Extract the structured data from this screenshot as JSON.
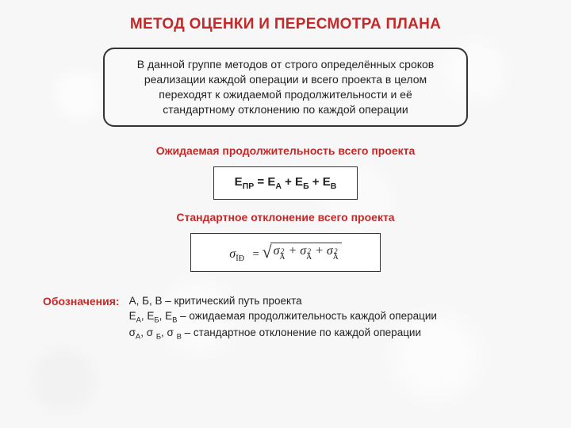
{
  "title": "МЕТОД ОЦЕНКИ И ПЕРЕСМОТРА ПЛАНА",
  "callout": "В данной группе методов от строго определённых сроков реализации каждой операции и всего проекта в целом переходят к ожидаемой продолжительности и её стандартному отклонению по каждой операции",
  "section1_heading": "Ожидаемая продолжительность всего проекта",
  "section2_heading": "Стандартное отклонение всего проекта",
  "legend_label": "Обозначения:",
  "legend_line1": "А, Б, В – критический путь проекта",
  "legend_line2_pre": "E",
  "legend_line2_text": " – ожидаемая продолжительность каждой операции",
  "legend_line3_text": " – стандартное отклонение по каждой операции",
  "colors": {
    "accent": "#c62828",
    "text": "#222222",
    "border": "#333333",
    "background": "#f7f7f7"
  },
  "formula_E": {
    "lhs": "E",
    "lhs_sub": "ПР",
    "terms": [
      {
        "base": "E",
        "sub": "А"
      },
      {
        "base": "E",
        "sub": "Б"
      },
      {
        "base": "E",
        "sub": "В"
      }
    ]
  },
  "formula_sigma": {
    "lhs_base": "σ",
    "lhs_sub": "ÏĐ",
    "terms": [
      {
        "base": "σ",
        "sup": "2",
        "sub": "À"
      },
      {
        "base": "σ",
        "sup": "2",
        "sub": "Á"
      },
      {
        "base": "σ",
        "sup": "2",
        "sub": "Â"
      }
    ]
  },
  "subs_E": [
    "А",
    "Б",
    "В"
  ],
  "subs_sigma": [
    "А",
    "Б",
    "В"
  ]
}
